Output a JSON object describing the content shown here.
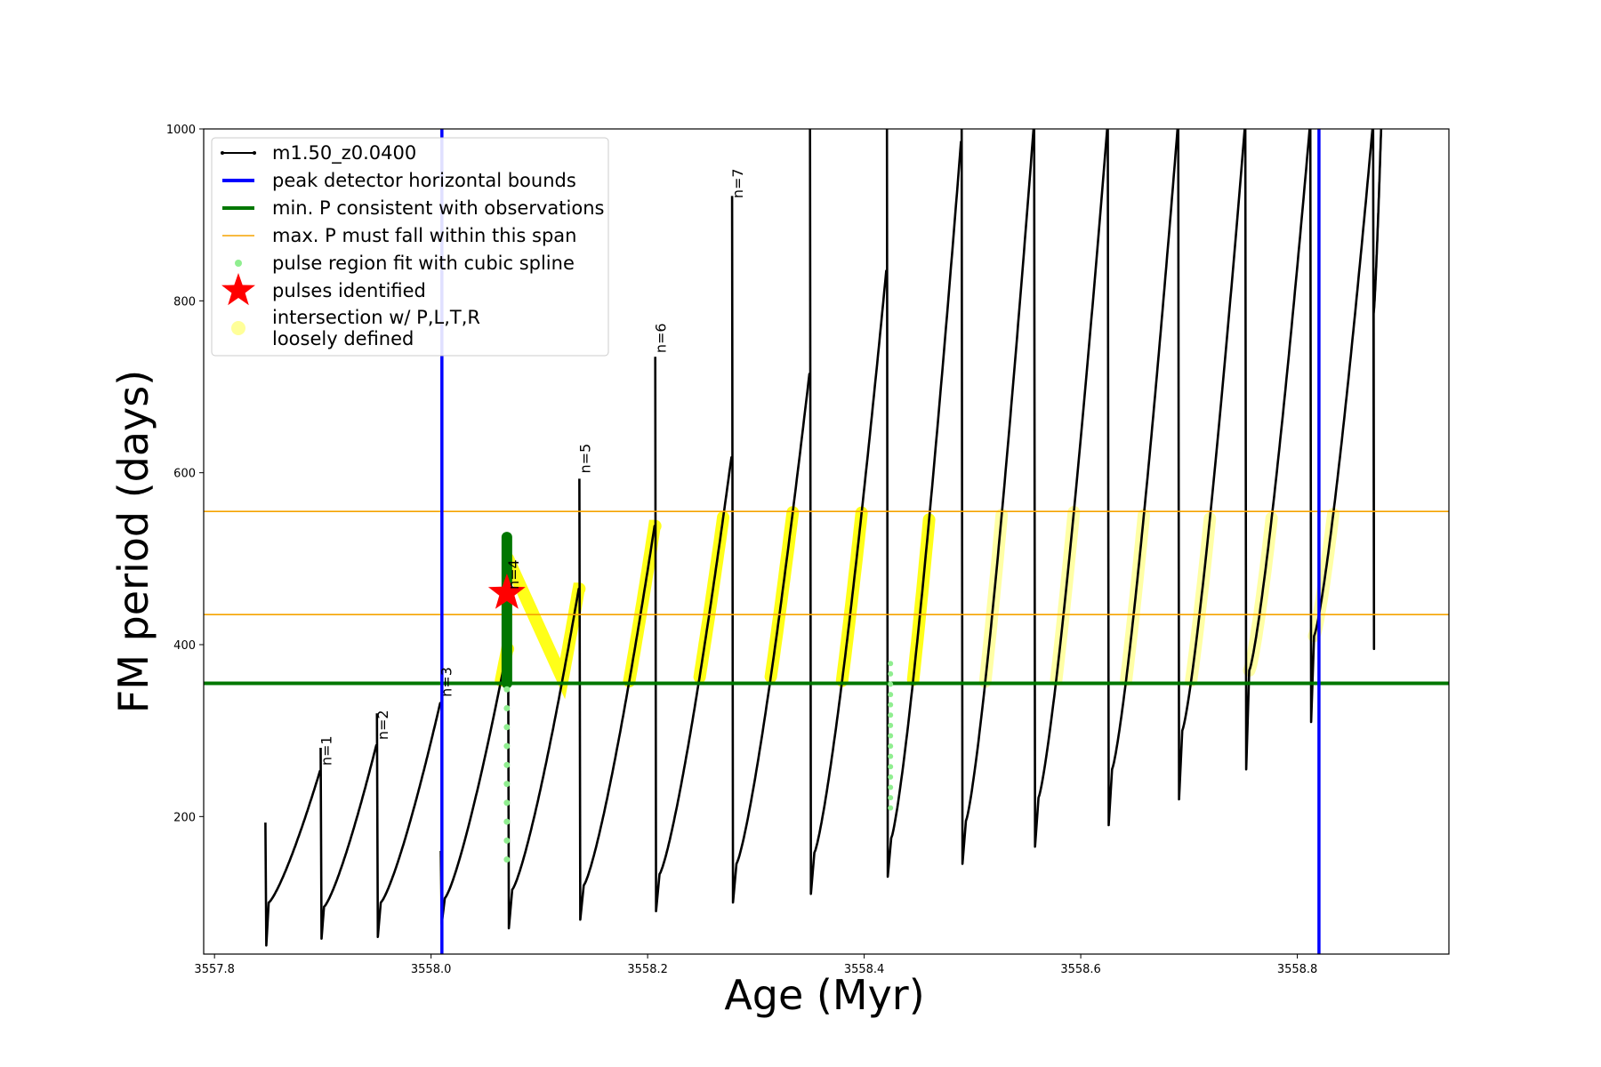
{
  "chart_data": {
    "type": "line",
    "xlabel": "Age (Myr)",
    "ylabel": "FM period (days)",
    "xlim": [
      3557.79,
      3558.94
    ],
    "ylim": [
      40,
      1000
    ],
    "xticks": [
      "3557.8",
      "3558.0",
      "3558.2",
      "3558.4",
      "3558.6",
      "3558.8"
    ],
    "yticks": [
      "200",
      "400",
      "600",
      "800",
      "1000"
    ],
    "colors": {
      "track": "#000000",
      "bounds": "#0000ff",
      "min_p": "#007700",
      "max_p": "#f5a300",
      "spline": "#90ee90",
      "pulse": "#ff0000",
      "intersection": "#ffff00"
    },
    "legend": [
      {
        "label": "m1.50_z0.0400",
        "marker": "line-dot",
        "color": "#000000"
      },
      {
        "label": "peak detector horizontal bounds",
        "marker": "line",
        "color": "#0000ff"
      },
      {
        "label": "min. P consistent with observations",
        "marker": "line",
        "color": "#007700"
      },
      {
        "label": "max. P must fall within this span",
        "marker": "thin-line",
        "color": "#f5a300"
      },
      {
        "label": "pulse region fit with cubic spline",
        "marker": "dot",
        "color": "#90ee90"
      },
      {
        "label": "pulses identified",
        "marker": "star",
        "color": "#ff0000"
      },
      {
        "label": "intersection w/ P,L,T,R\nloosely defined",
        "marker": "blob",
        "color": "#ffff99"
      }
    ],
    "legend_location": "upper left",
    "peak_detector_bounds": [
      3558.01,
      3558.82
    ],
    "min_p": 355,
    "max_p_span": [
      435,
      555
    ],
    "pulses": [
      {
        "x": 3558.07,
        "y": 460
      }
    ],
    "series": [
      {
        "name": "m1.50_z0.0400",
        "cycles": [
          {
            "x_start": 3557.847,
            "x_end": 3557.898,
            "y_min": 100,
            "y_peak": 253,
            "spike_top": 193,
            "spike_bottom": 50
          },
          {
            "x_start": 3557.898,
            "x_end": 3557.95,
            "y_min": 95,
            "y_peak": 283,
            "spike_top": 280,
            "spike_bottom": 58
          },
          {
            "x_start": 3557.95,
            "x_end": 3558.009,
            "y_min": 100,
            "y_peak": 332,
            "spike_top": 320,
            "spike_bottom": 60
          },
          {
            "x_start": 3558.009,
            "x_end": 3558.071,
            "y_min": 105,
            "y_peak": 395,
            "spike_top": 160,
            "spike_bottom": 75
          },
          {
            "x_start": 3558.071,
            "x_end": 3558.137,
            "y_min": 115,
            "y_peak": 465,
            "spike_top": 500,
            "spike_bottom": 70
          },
          {
            "x_start": 3558.137,
            "x_end": 3558.207,
            "y_min": 120,
            "y_peak": 538,
            "spike_top": 593,
            "spike_bottom": 80
          },
          {
            "x_start": 3558.207,
            "x_end": 3558.278,
            "y_min": 133,
            "y_peak": 618,
            "spike_top": 735,
            "spike_bottom": 90
          },
          {
            "x_start": 3558.278,
            "x_end": 3558.35,
            "y_min": 145,
            "y_peak": 715,
            "spike_top": 922,
            "spike_bottom": 100
          },
          {
            "x_start": 3558.35,
            "x_end": 3558.421,
            "y_min": 158,
            "y_peak": 835,
            "spike_top": 1000,
            "spike_bottom": 110
          },
          {
            "x_start": 3558.421,
            "x_end": 3558.49,
            "y_min": 175,
            "y_peak": 985,
            "spike_top": 1000,
            "spike_bottom": 130
          },
          {
            "x_start": 3558.49,
            "x_end": 3558.557,
            "y_min": 195,
            "y_peak": 1000,
            "spike_top": 1000,
            "spike_bottom": 145
          },
          {
            "x_start": 3558.557,
            "x_end": 3558.625,
            "y_min": 222,
            "y_peak": 1000,
            "spike_top": 1000,
            "spike_bottom": 165
          },
          {
            "x_start": 3558.625,
            "x_end": 3558.69,
            "y_min": 255,
            "y_peak": 1000,
            "spike_top": 1000,
            "spike_bottom": 190
          },
          {
            "x_start": 3558.69,
            "x_end": 3558.752,
            "y_min": 300,
            "y_peak": 1000,
            "spike_top": 1000,
            "spike_bottom": 220
          },
          {
            "x_start": 3558.752,
            "x_end": 3558.812,
            "y_min": 370,
            "y_peak": 1000,
            "spike_top": 1000,
            "spike_bottom": 255
          },
          {
            "x_start": 3558.812,
            "x_end": 3558.87,
            "y_min": 410,
            "y_peak": 1000,
            "spike_top": 1000,
            "spike_bottom": 310
          },
          {
            "x_start": 3558.87,
            "x_end": 3558.878,
            "y_min": 785,
            "y_peak": 1000,
            "spike_top": 1000,
            "spike_bottom": 395
          }
        ]
      }
    ],
    "annotations": [
      {
        "text": "n=1",
        "x": 3557.898,
        "y": 255
      },
      {
        "text": "n=2",
        "x": 3557.95,
        "y": 285
      },
      {
        "text": "n=3",
        "x": 3558.009,
        "y": 335
      },
      {
        "text": "n=4",
        "x": 3558.071,
        "y": 460
      },
      {
        "text": "n=5",
        "x": 3558.137,
        "y": 595
      },
      {
        "text": "n=6",
        "x": 3558.207,
        "y": 735
      },
      {
        "text": "n=7",
        "x": 3558.278,
        "y": 915
      }
    ]
  }
}
